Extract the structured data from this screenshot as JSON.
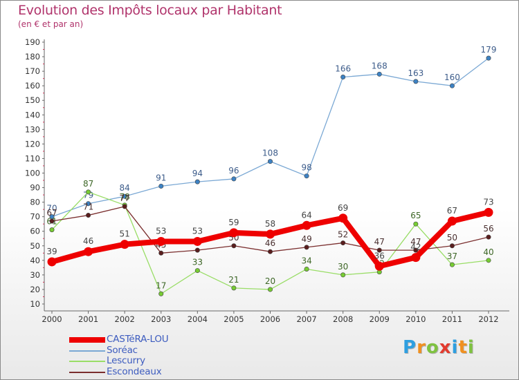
{
  "chart_data": {
    "type": "line",
    "title": "Evolution des Impôts locaux par Habitant",
    "subtitle": "(en € et par an)",
    "xlabel": "",
    "ylabel": "",
    "ylim": [
      10,
      190
    ],
    "y_ticks": [
      10,
      20,
      30,
      40,
      50,
      60,
      70,
      80,
      90,
      100,
      110,
      120,
      130,
      140,
      150,
      160,
      170,
      180,
      190
    ],
    "grid": false,
    "legend_position": "bottom-left",
    "x": [
      "2000",
      "2001",
      "2002",
      "2003",
      "2004",
      "2005",
      "2006",
      "2007",
      "2008",
      "2009",
      "2010",
      "2011",
      "2012"
    ],
    "series": [
      {
        "name": "CASTéRA-LOU",
        "color": "#ee0000",
        "marker": "#ee0000",
        "label_color": "#444444",
        "emphasis": "thick",
        "values": [
          39,
          46,
          51,
          53,
          53,
          59,
          58,
          64,
          69,
          36,
          42,
          67,
          73
        ]
      },
      {
        "name": "Soréac",
        "color": "#7aa8d4",
        "marker": "#3d82c4",
        "label_color": "#3d5c8a",
        "emphasis": "normal",
        "values": [
          70,
          79,
          84,
          91,
          94,
          96,
          108,
          98,
          166,
          168,
          163,
          160,
          179
        ]
      },
      {
        "name": "Lescurry",
        "color": "#99dd66",
        "marker": "#77cc33",
        "label_color": "#3d6626",
        "emphasis": "normal",
        "values": [
          61,
          87,
          78,
          17,
          33,
          21,
          20,
          34,
          30,
          32,
          65,
          37,
          40
        ]
      },
      {
        "name": "Escondeaux",
        "color": "#7a2e2e",
        "marker": "#5a1e1e",
        "label_color": "#4a3030",
        "emphasis": "normal",
        "values": [
          67,
          71,
          77,
          45,
          47,
          50,
          46,
          49,
          52,
          47,
          47,
          50,
          56
        ]
      }
    ]
  },
  "logo": {
    "letters": [
      "P",
      "r",
      "o",
      "x",
      "i",
      "t",
      "i"
    ],
    "colors": [
      "#2e9fe0",
      "#f09020",
      "#7fc241",
      "#e23b2f",
      "#2e9fe0",
      "#f09020",
      "#7fc241"
    ]
  }
}
